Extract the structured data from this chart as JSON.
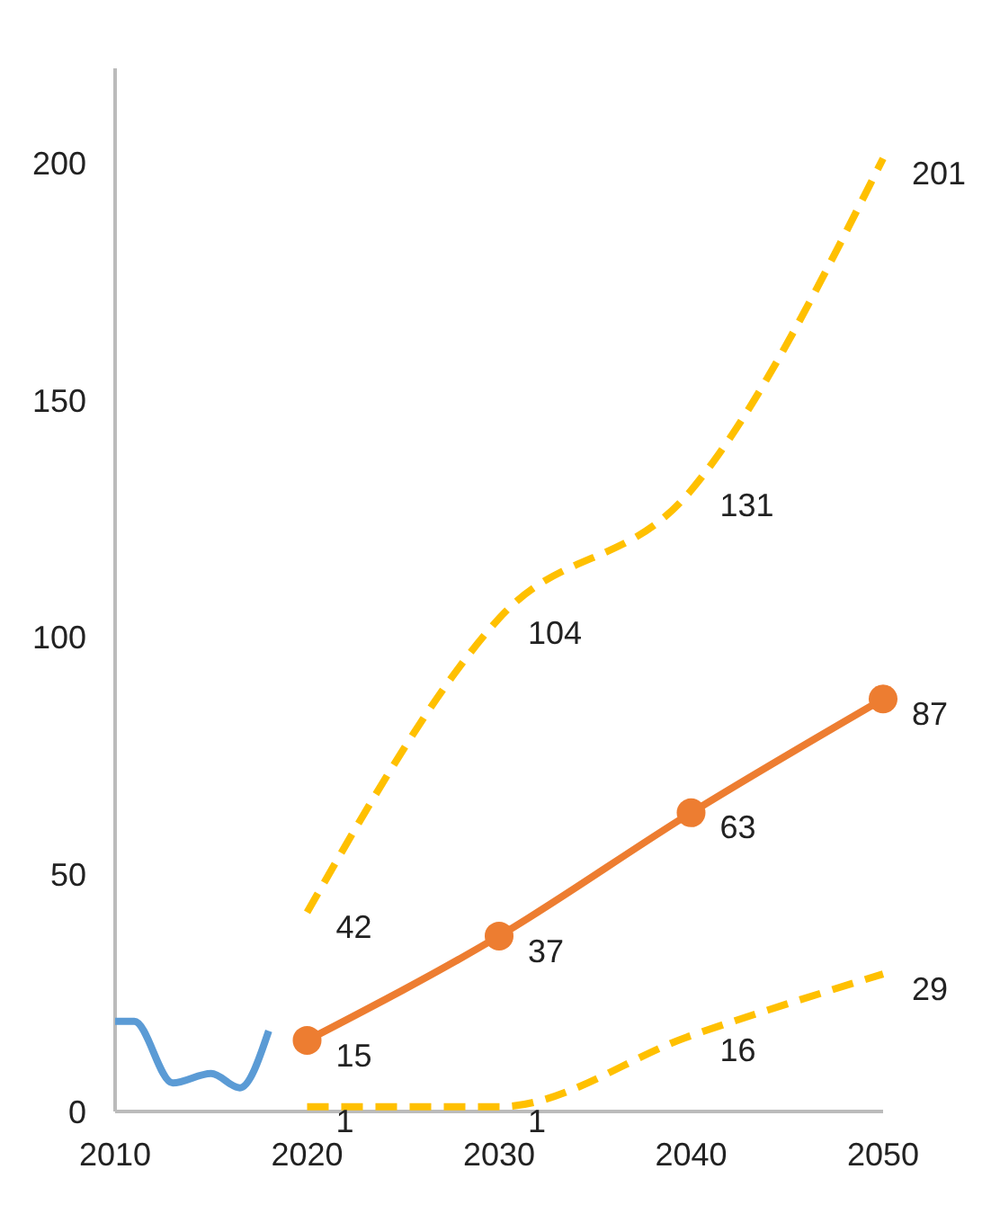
{
  "chart_data": {
    "type": "line",
    "x": [
      2020,
      2030,
      2040,
      2050
    ],
    "xlim": [
      2010,
      2050
    ],
    "xticks": [
      2010,
      2020,
      2030,
      2040,
      2050
    ],
    "ylim": [
      0,
      220
    ],
    "yticks": [
      0,
      50,
      100,
      150,
      200
    ],
    "grid": false,
    "series": [
      {
        "color": "#5b9bd5",
        "x": [
          2010,
          2011,
          2013,
          2015,
          2016.5,
          2018
        ],
        "values": [
          19,
          19,
          6,
          8,
          5,
          17
        ],
        "marker": "none",
        "line_style": "solid"
      },
      {
        "color": "#ed7d31",
        "values": [
          15,
          37,
          63,
          87
        ],
        "value_labels": [
          "15",
          "37",
          "63",
          "87"
        ],
        "marker": "circle",
        "line_style": "solid"
      },
      {
        "color": "#ffc000",
        "values": [
          42,
          104,
          131,
          201
        ],
        "value_labels": [
          "42",
          "104",
          "131",
          "201"
        ],
        "marker": "none",
        "line_style": "dashed"
      },
      {
        "color": "#ffc000",
        "values": [
          1,
          1,
          16,
          29
        ],
        "value_labels": [
          "1",
          "1",
          "16",
          "29"
        ],
        "marker": "none",
        "line_style": "dashed"
      }
    ]
  }
}
